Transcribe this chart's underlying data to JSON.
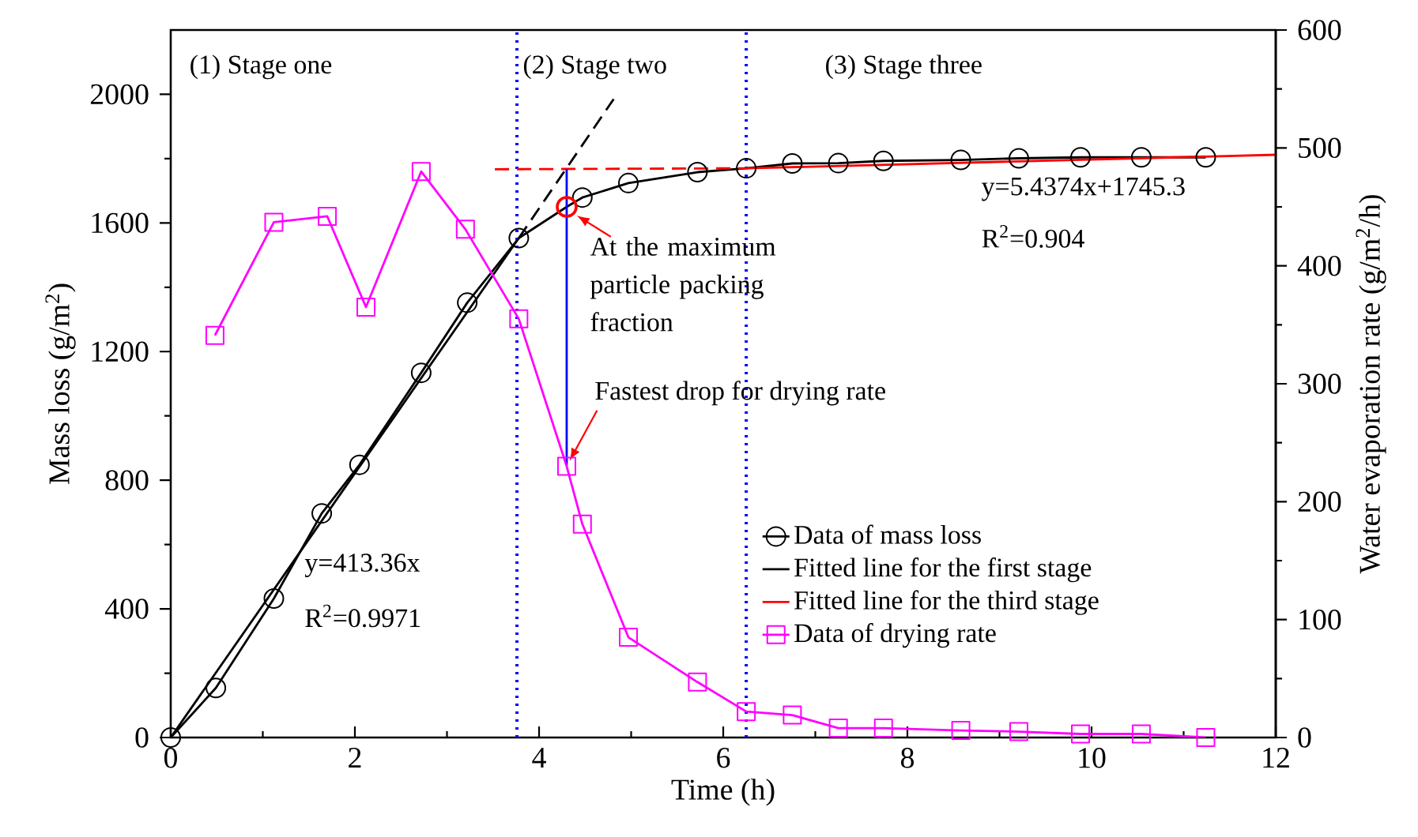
{
  "chart_data": {
    "type": "line",
    "xlabel": "Time (h)",
    "ylabel": "Mass loss (g/m$^{2}$)",
    "y2label": "Water evaporation rate (g/m$^{2}$/h)",
    "xlim": [
      0,
      12
    ],
    "xticks": [
      0,
      2,
      4,
      6,
      8,
      10,
      12
    ],
    "ylim": [
      0,
      2200
    ],
    "yticks": [
      0,
      400,
      800,
      1200,
      1600,
      2000
    ],
    "y2lim": [
      0,
      600
    ],
    "y2ticks": [
      0,
      100,
      200,
      300,
      400,
      500,
      600
    ],
    "legend": "bottom right",
    "series": [
      {
        "name": "Data of mass loss",
        "color": "#000000",
        "marker": "circle",
        "x": [
          0,
          0.49,
          1.12,
          1.64,
          2.05,
          2.72,
          3.22,
          3.78,
          4.3,
          4.47,
          4.97,
          5.72,
          6.25,
          6.75,
          7.25,
          7.74,
          8.58,
          9.21,
          9.88,
          10.54,
          11.24
        ],
        "values": [
          0,
          154,
          432,
          697,
          848,
          1134,
          1352,
          1553,
          1650,
          1679,
          1724,
          1758,
          1770,
          1785,
          1786,
          1793,
          1796,
          1801,
          1804,
          1804,
          1804
        ]
      },
      {
        "name": "Fitted line for the first stage",
        "color": "#000000",
        "x": [
          0,
          3.78
        ],
        "values": [
          0,
          1553
        ]
      },
      {
        "color": "#000000",
        "line_style": "dashed",
        "x": [
          3.78,
          4.81
        ],
        "values": [
          1553,
          1985
        ]
      },
      {
        "name": "Fitted line for the third stage",
        "color": "#ff0000",
        "x": [
          6.25,
          12
        ],
        "values": [
          1770,
          1812
        ]
      },
      {
        "color": "#ff0000",
        "line_style": "dashed",
        "x": [
          3.52,
          6.25
        ],
        "values": [
          1767,
          1770
        ]
      },
      {
        "name": "Data of drying rate",
        "color": "#ff00ff",
        "marker": "square",
        "axis": "y2",
        "x": [
          0.48,
          1.12,
          1.7,
          2.12,
          2.72,
          3.2,
          3.78,
          4.3,
          4.47,
          4.97,
          5.72,
          6.25,
          6.75,
          7.25,
          7.74,
          8.58,
          9.21,
          9.88,
          10.54,
          11.24
        ],
        "values": [
          341,
          437,
          442,
          365,
          480,
          431,
          355,
          230,
          181,
          85,
          47,
          22,
          19,
          8,
          8,
          6,
          5,
          3,
          3,
          0
        ]
      },
      {
        "color": "#0000ff",
        "x": [
          4.3,
          4.3
        ],
        "values": [
          1768,
          845
        ]
      },
      {
        "type": "scatter",
        "color": "#ff0000",
        "marker": "circle",
        "x": [
          4.3
        ],
        "values": [
          1650
        ]
      }
    ],
    "ref_lines": [
      {
        "axis": "x",
        "value": 3.76,
        "color": "#0000ff",
        "line_style": "dotted"
      },
      {
        "axis": "x",
        "value": 6.25,
        "color": "#0000ff",
        "line_style": "dotted"
      }
    ],
    "annotations": [
      "(1) Stage one",
      "(2) Stage two",
      "(3) Stage three",
      "y=413.36x",
      "R$^{2}$=0.9971",
      "y=5.4374x+1745.3",
      "R$^{2}$=0.904",
      {
        "text": "At the maximum particle packing fraction",
        "x": 4.3,
        "y": 1650
      },
      {
        "text": "Fastest drop for drying rate",
        "x": 4.3,
        "y": 845
      }
    ]
  }
}
